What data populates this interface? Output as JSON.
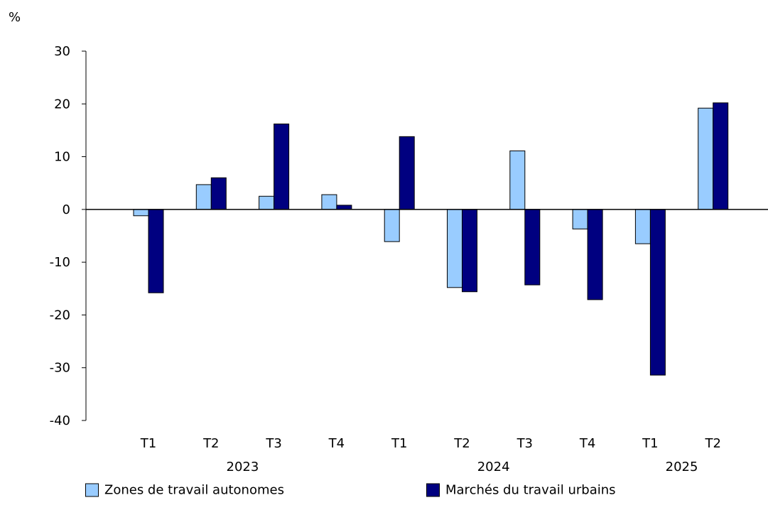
{
  "chart_data": {
    "type": "bar",
    "ylabel": "%",
    "ylim": [
      -40,
      30
    ],
    "yticks": [
      30,
      20,
      10,
      0,
      -10,
      -20,
      -30,
      -40
    ],
    "categories": [
      "T1",
      "T2",
      "T3",
      "T4",
      "T1",
      "T2",
      "T3",
      "T4",
      "T1",
      "T2"
    ],
    "years": [
      {
        "label": "2023",
        "span": [
          0,
          3
        ]
      },
      {
        "label": "2024",
        "span": [
          4,
          7
        ]
      },
      {
        "label": "2025",
        "span": [
          8,
          9
        ]
      }
    ],
    "series": [
      {
        "name": "Zones de travail autonomes",
        "color": "#99ccff",
        "values": [
          -1.2,
          4.7,
          2.5,
          2.8,
          -6.1,
          -14.8,
          11.1,
          -3.7,
          -6.5,
          19.2
        ]
      },
      {
        "name": "Marchés du travail urbains",
        "color": "#000080",
        "values": [
          -15.8,
          6.0,
          16.2,
          0.8,
          13.8,
          -15.6,
          -14.3,
          -17.1,
          -31.4,
          20.2
        ]
      }
    ],
    "grid": false,
    "legend_position": "bottom"
  }
}
